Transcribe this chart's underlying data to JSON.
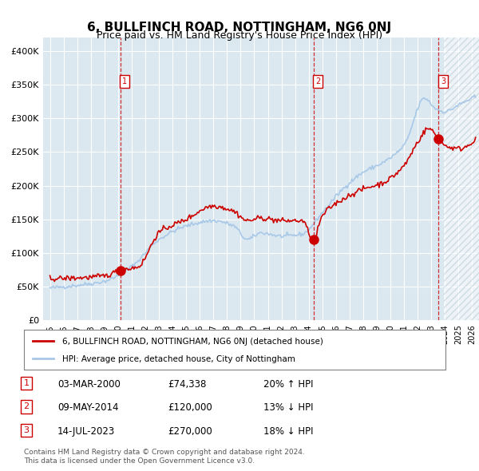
{
  "title": "6, BULLFINCH ROAD, NOTTINGHAM, NG6 0NJ",
  "subtitle": "Price paid vs. HM Land Registry's House Price Index (HPI)",
  "legend_line1": "6, BULLFINCH ROAD, NOTTINGHAM, NG6 0NJ (detached house)",
  "legend_line2": "HPI: Average price, detached house, City of Nottingham",
  "footer1": "Contains HM Land Registry data © Crown copyright and database right 2024.",
  "footer2": "This data is licensed under the Open Government Licence v3.0.",
  "transactions": [
    {
      "num": 1,
      "date": "03-MAR-2000",
      "price": 74338,
      "pct": "20%",
      "dir": "↑",
      "x_year": 2000.17
    },
    {
      "num": 2,
      "date": "09-MAY-2014",
      "price": 120000,
      "pct": "13%",
      "dir": "↓",
      "x_year": 2014.35
    },
    {
      "num": 3,
      "date": "14-JUL-2023",
      "price": 270000,
      "pct": "18%",
      "dir": "↓",
      "x_year": 2023.53
    }
  ],
  "hpi_color": "#a8c8e8",
  "prop_color": "#cc0000",
  "vline_color": "#cc0000",
  "bg_color": "#dce8f0",
  "hatch_color": "#c8d8e0",
  "ylim": [
    0,
    420000
  ],
  "xlim_start": 1994.5,
  "xlim_end": 2026.5,
  "yticks": [
    0,
    50000,
    100000,
    150000,
    200000,
    250000,
    300000,
    350000,
    400000
  ],
  "ytick_labels": [
    "£0",
    "£50K",
    "£100K",
    "£150K",
    "£200K",
    "£250K",
    "£300K",
    "£350K",
    "£400K"
  ]
}
